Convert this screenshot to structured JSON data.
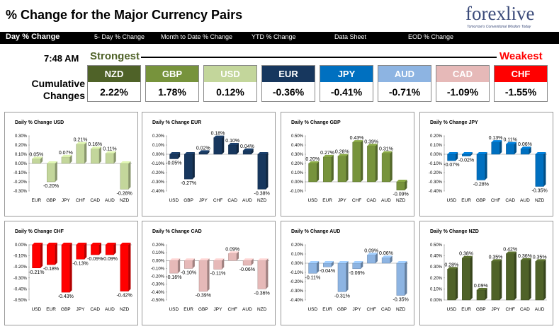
{
  "header": {
    "title": "% Change for the Major Currency Pairs",
    "logo_text": "forexlive",
    "logo_tagline": "Tomorrow's Conventional Wisdom Today"
  },
  "nav": {
    "items": [
      "Day % Change",
      "5- Day % Change",
      "Month to Date % Change",
      "YTD % Change",
      "Data Sheet",
      "EOD % Change"
    ]
  },
  "summary": {
    "time": "7:48 AM",
    "strongest_label": "Strongest",
    "weakest_label": "Weakest",
    "cumulative_label": "Cumulative Changes",
    "currencies": [
      {
        "name": "NZD",
        "value": "2.22%",
        "color": "#4f6228"
      },
      {
        "name": "GBP",
        "value": "1.78%",
        "color": "#77933c"
      },
      {
        "name": "USD",
        "value": "0.12%",
        "color": "#c3d69b"
      },
      {
        "name": "EUR",
        "value": "-0.36%",
        "color": "#17375e"
      },
      {
        "name": "JPY",
        "value": "-0.41%",
        "color": "#0070c0"
      },
      {
        "name": "AUD",
        "value": "-0.71%",
        "color": "#8db4e2"
      },
      {
        "name": "CAD",
        "value": "-1.09%",
        "color": "#e6b9b8"
      },
      {
        "name": "CHF",
        "value": "-1.55%",
        "color": "#ff0000"
      }
    ]
  },
  "chart_data": [
    {
      "type": "bar",
      "title": "Daily % Change USD",
      "categories": [
        "EUR",
        "GBP",
        "JPY",
        "CHF",
        "CAD",
        "AUD",
        "NZD"
      ],
      "values": [
        0.05,
        -0.2,
        0.07,
        0.21,
        0.16,
        0.11,
        -0.28
      ],
      "labels": [
        "0.05%",
        "-0.20%",
        "0.07%",
        "0.21%",
        "0.16%",
        "0.11%",
        "-0.28%"
      ],
      "ylim": [
        -0.3,
        0.3
      ],
      "yticks": [
        "0.30%",
        "0.20%",
        "0.10%",
        "0.00%",
        "-0.10%",
        "-0.20%",
        "-0.30%"
      ],
      "bar_color": "#c3d69b",
      "grid": false
    },
    {
      "type": "bar",
      "title": "Daily % Change EUR",
      "categories": [
        "USD",
        "GBP",
        "JPY",
        "CHF",
        "CAD",
        "AUD",
        "NZD"
      ],
      "values": [
        -0.05,
        -0.27,
        0.02,
        0.18,
        0.1,
        0.04,
        -0.38
      ],
      "labels": [
        "-0.05%",
        "-0.27%",
        "0.02%",
        "0.18%",
        "0.10%",
        "0.04%",
        "-0.38%"
      ],
      "ylim": [
        -0.4,
        0.2
      ],
      "yticks": [
        "0.20%",
        "0.10%",
        "0.00%",
        "-0.10%",
        "-0.20%",
        "-0.30%",
        "-0.40%"
      ],
      "bar_color": "#17375e",
      "grid": false
    },
    {
      "type": "bar",
      "title": "Daily % Change GBP",
      "categories": [
        "USD",
        "EUR",
        "JPY",
        "CHF",
        "CAD",
        "AUD",
        "NZD"
      ],
      "values": [
        0.2,
        0.27,
        0.28,
        0.43,
        0.39,
        0.31,
        -0.09
      ],
      "labels": [
        "0.20%",
        "0.27%",
        "0.28%",
        "0.43%",
        "0.39%",
        "0.31%",
        "-0.09%"
      ],
      "ylim": [
        -0.1,
        0.5
      ],
      "yticks": [
        "0.50%",
        "0.40%",
        "0.30%",
        "0.20%",
        "0.10%",
        "0.00%",
        "-0.10%"
      ],
      "bar_color": "#77933c",
      "grid": false
    },
    {
      "type": "bar",
      "title": "Daily % Change JPY",
      "categories": [
        "USD",
        "EUR",
        "GBP",
        "CHF",
        "CAD",
        "AUD",
        "NZD"
      ],
      "values": [
        -0.07,
        -0.02,
        -0.28,
        0.13,
        0.11,
        0.06,
        -0.35
      ],
      "labels": [
        "-0.07%",
        "-0.02%",
        "-0.28%",
        "0.13%",
        "0.11%",
        "0.06%",
        "-0.35%"
      ],
      "ylim": [
        -0.4,
        0.2
      ],
      "yticks": [
        "0.20%",
        "0.10%",
        "0.00%",
        "-0.10%",
        "-0.20%",
        "-0.30%",
        "-0.40%"
      ],
      "bar_color": "#0070c0",
      "grid": false
    },
    {
      "type": "bar",
      "title": "Daily % Change CHF",
      "categories": [
        "USD",
        "EUR",
        "GBP",
        "JPY",
        "CAD",
        "AUD",
        "NZD"
      ],
      "values": [
        -0.21,
        -0.18,
        -0.43,
        -0.13,
        -0.09,
        -0.09,
        -0.42
      ],
      "labels": [
        "-0.21%",
        "-0.18%",
        "-0.43%",
        "-0.13%",
        "-0.09%",
        "-0.09%",
        "-0.42%"
      ],
      "ylim": [
        -0.5,
        0.0
      ],
      "yticks": [
        "0.00%",
        "-0.10%",
        "-0.20%",
        "-0.30%",
        "-0.40%",
        "-0.50%"
      ],
      "bar_color": "#ff0000",
      "grid": false
    },
    {
      "type": "bar",
      "title": "Daily % Change CAD",
      "categories": [
        "USD",
        "EUR",
        "GBP",
        "JPY",
        "CHF",
        "AUD",
        "NZD"
      ],
      "values": [
        -0.16,
        -0.1,
        -0.39,
        -0.11,
        0.09,
        -0.06,
        -0.36
      ],
      "labels": [
        "-0.16%",
        "-0.10%",
        "-0.39%",
        "-0.11%",
        "0.09%",
        "-0.06%",
        "-0.36%"
      ],
      "ylim": [
        -0.5,
        0.2
      ],
      "yticks": [
        "0.20%",
        "0.10%",
        "0.00%",
        "-0.10%",
        "-0.20%",
        "-0.30%",
        "-0.40%",
        "-0.50%"
      ],
      "bar_color": "#e6b9b8",
      "grid": false
    },
    {
      "type": "bar",
      "title": "Daily % Change AUD",
      "categories": [
        "USD",
        "EUR",
        "GBP",
        "JPY",
        "CHF",
        "CAD",
        "NZD"
      ],
      "values": [
        -0.11,
        -0.04,
        -0.31,
        -0.06,
        0.09,
        0.06,
        -0.35
      ],
      "labels": [
        "-0.11%",
        "-0.04%",
        "-0.31%",
        "-0.06%",
        "0.09%",
        "0.06%",
        "-0.35%"
      ],
      "ylim": [
        -0.4,
        0.2
      ],
      "yticks": [
        "0.20%",
        "0.10%",
        "0.00%",
        "-0.10%",
        "-0.20%",
        "-0.30%",
        "-0.40%"
      ],
      "bar_color": "#8db4e2",
      "grid": false
    },
    {
      "type": "bar",
      "title": "Daily % Change NZD",
      "categories": [
        "USD",
        "EUR",
        "GBP",
        "JPY",
        "CHF",
        "CAD",
        "AUD"
      ],
      "values": [
        0.28,
        0.38,
        0.09,
        0.35,
        0.42,
        0.36,
        0.35
      ],
      "labels": [
        "0.28%",
        "0.38%",
        "0.09%",
        "0.35%",
        "0.42%",
        "0.36%",
        "0.35%"
      ],
      "ylim": [
        0.0,
        0.5
      ],
      "yticks": [
        "0.50%",
        "0.40%",
        "0.30%",
        "0.20%",
        "0.10%",
        "0.00%"
      ],
      "bar_color": "#4f6228",
      "grid": false
    }
  ]
}
